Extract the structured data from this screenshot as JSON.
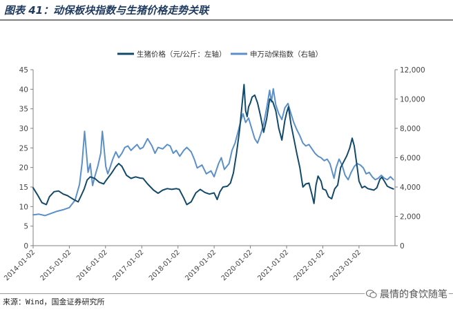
{
  "figure": {
    "title": "图表 41：动保板块指数与生猪价格走势关联",
    "source": "来源：Wind，国金证券研究所",
    "watermark": "晨情的食饮随笔",
    "watermark_icon": "wechat-icon"
  },
  "colors": {
    "pig_price": "#11496b",
    "index": "#5b8fc9",
    "axis": "#7f7f7f",
    "title": "#1f3a5f"
  },
  "chart_data": {
    "type": "line",
    "title": "",
    "legend_position": "top-center",
    "grid": false,
    "x_type": "date",
    "xlim": [
      "2014-01-02",
      "2023-12-31"
    ],
    "x_ticks": [
      "2014-01-02",
      "2015-01-02",
      "2016-01-02",
      "2017-01-02",
      "2018-01-02",
      "2019-01-02",
      "2020-01-02",
      "2021-01-02",
      "2022-01-02",
      "2023-01-02"
    ],
    "y_left": {
      "label": "",
      "lim": [
        0,
        45
      ],
      "ticks": [
        0,
        5,
        10,
        15,
        20,
        25,
        30,
        35,
        40,
        45
      ],
      "tick_labels": [
        "0",
        "5",
        "10",
        "15",
        "20",
        "25",
        "30",
        "35",
        "40",
        "45"
      ]
    },
    "y_right": {
      "label": "",
      "lim": [
        0,
        12000
      ],
      "ticks": [
        0,
        2000,
        4000,
        6000,
        8000,
        10000,
        12000
      ],
      "tick_labels": [
        "0",
        "2,000",
        "4,000",
        "6,000",
        "8,000",
        "10,000",
        "12,000"
      ]
    },
    "series": [
      {
        "name": "生猪价格（元/公斤：左轴）",
        "axis": "left",
        "color_key": "pig_price",
        "points": [
          [
            "2014-01-02",
            14.8
          ],
          [
            "2014-02-15",
            13.0
          ],
          [
            "2014-04-01",
            11.0
          ],
          [
            "2014-05-15",
            10.5
          ],
          [
            "2014-06-15",
            12.5
          ],
          [
            "2014-08-01",
            13.8
          ],
          [
            "2014-09-15",
            14.0
          ],
          [
            "2014-11-01",
            13.2
          ],
          [
            "2014-12-15",
            12.8
          ],
          [
            "2015-01-02",
            12.5
          ],
          [
            "2015-02-15",
            11.8
          ],
          [
            "2015-04-01",
            11.2
          ],
          [
            "2015-05-01",
            12.8
          ],
          [
            "2015-06-01",
            14.5
          ],
          [
            "2015-07-01",
            16.8
          ],
          [
            "2015-08-01",
            17.6
          ],
          [
            "2015-09-15",
            17.2
          ],
          [
            "2015-11-01",
            16.2
          ],
          [
            "2015-12-15",
            15.8
          ],
          [
            "2016-01-02",
            16.5
          ],
          [
            "2016-03-01",
            18.5
          ],
          [
            "2016-04-15",
            20.2
          ],
          [
            "2016-05-15",
            21.0
          ],
          [
            "2016-06-15",
            20.3
          ],
          [
            "2016-08-01",
            18.0
          ],
          [
            "2016-09-15",
            17.2
          ],
          [
            "2016-11-01",
            17.6
          ],
          [
            "2016-12-15",
            17.3
          ],
          [
            "2017-01-15",
            17.2
          ],
          [
            "2017-03-01",
            15.8
          ],
          [
            "2017-05-01",
            14.2
          ],
          [
            "2017-06-15",
            13.4
          ],
          [
            "2017-08-01",
            14.2
          ],
          [
            "2017-09-15",
            14.6
          ],
          [
            "2017-11-01",
            14.4
          ],
          [
            "2017-12-15",
            14.6
          ],
          [
            "2018-01-15",
            14.4
          ],
          [
            "2018-03-01",
            12.2
          ],
          [
            "2018-04-01",
            10.5
          ],
          [
            "2018-05-15",
            11.2
          ],
          [
            "2018-07-01",
            13.5
          ],
          [
            "2018-08-15",
            14.4
          ],
          [
            "2018-10-01",
            13.6
          ],
          [
            "2018-11-15",
            13.2
          ],
          [
            "2019-01-02",
            13.5
          ],
          [
            "2019-02-01",
            11.8
          ],
          [
            "2019-03-01",
            13.8
          ],
          [
            "2019-04-01",
            15.0
          ],
          [
            "2019-05-15",
            15.2
          ],
          [
            "2019-06-15",
            16.0
          ],
          [
            "2019-07-15",
            18.6
          ],
          [
            "2019-08-15",
            23.5
          ],
          [
            "2019-09-15",
            29.5
          ],
          [
            "2019-10-10",
            36.0
          ],
          [
            "2019-10-30",
            41.2
          ],
          [
            "2019-11-15",
            34.5
          ],
          [
            "2019-12-01",
            33.0
          ],
          [
            "2019-12-15",
            35.5
          ],
          [
            "2020-01-02",
            36.5
          ],
          [
            "2020-01-20",
            38.0
          ],
          [
            "2020-02-15",
            38.5
          ],
          [
            "2020-03-15",
            36.5
          ],
          [
            "2020-04-15",
            33.0
          ],
          [
            "2020-05-15",
            29.0
          ],
          [
            "2020-06-15",
            32.5
          ],
          [
            "2020-07-15",
            37.5
          ],
          [
            "2020-08-15",
            36.8
          ],
          [
            "2020-09-15",
            34.5
          ],
          [
            "2020-10-15",
            30.0
          ],
          [
            "2020-11-15",
            27.0
          ],
          [
            "2020-12-15",
            32.0
          ],
          [
            "2021-01-02",
            34.0
          ],
          [
            "2021-01-20",
            35.5
          ],
          [
            "2021-02-15",
            31.0
          ],
          [
            "2021-03-15",
            27.5
          ],
          [
            "2021-04-15",
            23.5
          ],
          [
            "2021-05-15",
            20.0
          ],
          [
            "2021-06-15",
            15.0
          ],
          [
            "2021-07-15",
            15.8
          ],
          [
            "2021-08-15",
            16.0
          ],
          [
            "2021-09-15",
            13.0
          ],
          [
            "2021-10-05",
            10.8
          ],
          [
            "2021-10-25",
            15.5
          ],
          [
            "2021-11-15",
            17.8
          ],
          [
            "2021-12-15",
            16.5
          ],
          [
            "2022-01-02",
            14.5
          ],
          [
            "2022-02-01",
            14.2
          ],
          [
            "2022-03-01",
            12.5
          ],
          [
            "2022-04-01",
            12.0
          ],
          [
            "2022-05-01",
            14.5
          ],
          [
            "2022-06-01",
            15.5
          ],
          [
            "2022-07-01",
            20.0
          ],
          [
            "2022-08-01",
            21.5
          ],
          [
            "2022-09-01",
            23.0
          ],
          [
            "2022-10-01",
            25.0
          ],
          [
            "2022-10-25",
            27.5
          ],
          [
            "2022-11-15",
            25.5
          ],
          [
            "2022-12-15",
            20.0
          ],
          [
            "2023-01-02",
            16.5
          ],
          [
            "2023-02-01",
            14.8
          ],
          [
            "2023-03-01",
            15.2
          ],
          [
            "2023-04-01",
            14.6
          ],
          [
            "2023-05-01",
            14.4
          ],
          [
            "2023-06-01",
            14.2
          ],
          [
            "2023-07-01",
            14.8
          ],
          [
            "2023-08-01",
            17.0
          ],
          [
            "2023-08-20",
            17.5
          ],
          [
            "2023-09-15",
            16.5
          ],
          [
            "2023-10-15",
            15.2
          ],
          [
            "2023-11-15",
            14.8
          ],
          [
            "2023-12-15",
            14.5
          ]
        ]
      },
      {
        "name": "申万动保指数（右轴）",
        "axis": "right",
        "color_key": "index",
        "points": [
          [
            "2014-01-02",
            2100
          ],
          [
            "2014-03-01",
            2150
          ],
          [
            "2014-05-01",
            2050
          ],
          [
            "2014-07-01",
            2200
          ],
          [
            "2014-09-01",
            2350
          ],
          [
            "2014-11-01",
            2450
          ],
          [
            "2015-01-02",
            2600
          ],
          [
            "2015-03-01",
            3100
          ],
          [
            "2015-04-15",
            4200
          ],
          [
            "2015-05-10",
            5600
          ],
          [
            "2015-06-05",
            7800
          ],
          [
            "2015-06-25",
            6200
          ],
          [
            "2015-07-10",
            5000
          ],
          [
            "2015-08-01",
            5600
          ],
          [
            "2015-08-25",
            4100
          ],
          [
            "2015-09-15",
            4700
          ],
          [
            "2015-10-15",
            5400
          ],
          [
            "2015-11-15",
            6300
          ],
          [
            "2015-12-01",
            7800
          ],
          [
            "2015-12-15",
            6900
          ],
          [
            "2016-01-05",
            5400
          ],
          [
            "2016-01-25",
            4900
          ],
          [
            "2016-02-15",
            5300
          ],
          [
            "2016-03-15",
            5900
          ],
          [
            "2016-04-15",
            6400
          ],
          [
            "2016-05-15",
            6000
          ],
          [
            "2016-06-15",
            6300
          ],
          [
            "2016-07-15",
            6700
          ],
          [
            "2016-08-15",
            6800
          ],
          [
            "2016-09-15",
            6500
          ],
          [
            "2016-10-15",
            6700
          ],
          [
            "2016-11-15",
            6900
          ],
          [
            "2016-12-15",
            6600
          ],
          [
            "2017-01-15",
            6700
          ],
          [
            "2017-03-01",
            7300
          ],
          [
            "2017-04-15",
            6800
          ],
          [
            "2017-05-15",
            6300
          ],
          [
            "2017-06-15",
            6700
          ],
          [
            "2017-08-01",
            6600
          ],
          [
            "2017-09-15",
            6900
          ],
          [
            "2017-10-15",
            6800
          ],
          [
            "2017-11-15",
            6300
          ],
          [
            "2017-12-15",
            6500
          ],
          [
            "2018-01-20",
            6100
          ],
          [
            "2018-03-01",
            6500
          ],
          [
            "2018-04-01",
            6700
          ],
          [
            "2018-05-15",
            6400
          ],
          [
            "2018-06-15",
            5900
          ],
          [
            "2018-07-15",
            5300
          ],
          [
            "2018-09-01",
            5500
          ],
          [
            "2018-10-15",
            4900
          ],
          [
            "2018-12-01",
            5100
          ],
          [
            "2019-01-02",
            4700
          ],
          [
            "2019-02-15",
            5600
          ],
          [
            "2019-03-15",
            6000
          ],
          [
            "2019-04-15",
            5200
          ],
          [
            "2019-06-01",
            5600
          ],
          [
            "2019-07-01",
            6500
          ],
          [
            "2019-08-01",
            7000
          ],
          [
            "2019-09-01",
            7800
          ],
          [
            "2019-10-01",
            8600
          ],
          [
            "2019-10-20",
            9000
          ],
          [
            "2019-11-15",
            8400
          ],
          [
            "2019-12-15",
            8700
          ],
          [
            "2020-01-15",
            8000
          ],
          [
            "2020-02-15",
            7300
          ],
          [
            "2020-03-15",
            7000
          ],
          [
            "2020-04-15",
            7600
          ],
          [
            "2020-05-15",
            8300
          ],
          [
            "2020-06-15",
            9400
          ],
          [
            "2020-07-15",
            10600
          ],
          [
            "2020-08-01",
            9800
          ],
          [
            "2020-08-20",
            10700
          ],
          [
            "2020-09-15",
            9600
          ],
          [
            "2020-10-15",
            9000
          ],
          [
            "2020-11-15",
            8600
          ],
          [
            "2020-12-15",
            9400
          ],
          [
            "2021-01-15",
            9700
          ],
          [
            "2021-02-15",
            9000
          ],
          [
            "2021-03-15",
            8400
          ],
          [
            "2021-04-15",
            7900
          ],
          [
            "2021-05-15",
            7500
          ],
          [
            "2021-06-15",
            7000
          ],
          [
            "2021-07-15",
            6800
          ],
          [
            "2021-08-15",
            6900
          ],
          [
            "2021-09-15",
            6600
          ],
          [
            "2021-10-15",
            6300
          ],
          [
            "2021-11-15",
            6100
          ],
          [
            "2021-12-15",
            6000
          ],
          [
            "2022-01-15",
            5800
          ],
          [
            "2022-02-15",
            5900
          ],
          [
            "2022-03-15",
            5600
          ],
          [
            "2022-04-25",
            4600
          ],
          [
            "2022-05-15",
            5300
          ],
          [
            "2022-06-15",
            5900
          ],
          [
            "2022-07-15",
            5500
          ],
          [
            "2022-08-15",
            4800
          ],
          [
            "2022-09-15",
            4500
          ],
          [
            "2022-10-15",
            5000
          ],
          [
            "2022-11-15",
            5400
          ],
          [
            "2022-12-15",
            5600
          ],
          [
            "2023-01-15",
            5500
          ],
          [
            "2023-02-15",
            5300
          ],
          [
            "2023-03-15",
            4900
          ],
          [
            "2023-04-15",
            5000
          ],
          [
            "2023-05-15",
            4700
          ],
          [
            "2023-06-15",
            4500
          ],
          [
            "2023-07-15",
            4600
          ],
          [
            "2023-08-15",
            4800
          ],
          [
            "2023-09-15",
            4600
          ],
          [
            "2023-10-15",
            4500
          ],
          [
            "2023-11-15",
            4700
          ],
          [
            "2023-12-15",
            4500
          ]
        ]
      }
    ]
  }
}
